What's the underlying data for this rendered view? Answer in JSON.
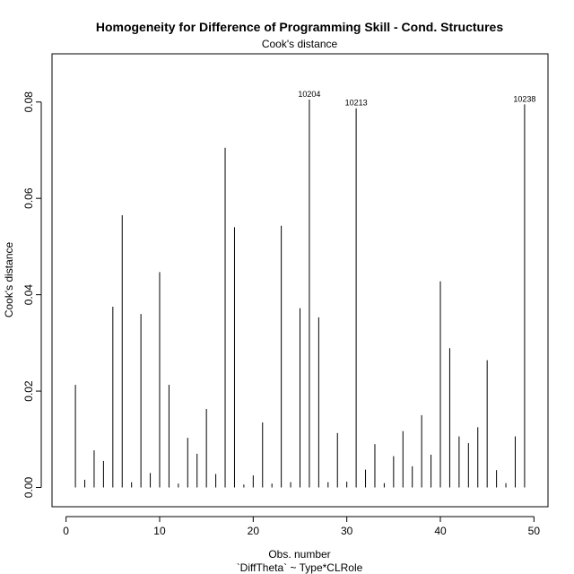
{
  "chart_data": {
    "type": "bar",
    "title": "Homogeneity for Difference of Programming Skill - Cond. Structures",
    "subtitle": "Cook's distance",
    "xlabel": "Obs. number",
    "xlabel2": "`DiffTheta` ~ Type*CLRole",
    "ylabel": "Cook's distance",
    "xlim": [
      -1.5,
      51.5
    ],
    "ylim": [
      -0.004,
      0.09
    ],
    "xticks": [
      0,
      10,
      20,
      30,
      40,
      50
    ],
    "yticks": [
      0.0,
      0.02,
      0.04,
      0.06,
      0.08
    ],
    "xtick_labels": [
      "0",
      "10",
      "20",
      "30",
      "40",
      "50"
    ],
    "ytick_labels": [
      "0.00",
      "0.02",
      "0.04",
      "0.06",
      "0.08"
    ],
    "grid": false,
    "x": [
      1,
      2,
      3,
      4,
      5,
      6,
      7,
      8,
      9,
      10,
      11,
      12,
      13,
      14,
      15,
      16,
      17,
      18,
      19,
      20,
      21,
      22,
      23,
      24,
      25,
      26,
      27,
      28,
      29,
      30,
      31,
      32,
      33,
      34,
      35,
      36,
      37,
      38,
      39,
      40,
      41,
      42,
      43,
      44,
      45,
      46,
      47,
      48,
      49
    ],
    "values": [
      0.0213,
      0.0016,
      0.0077,
      0.0055,
      0.0375,
      0.0565,
      0.0011,
      0.036,
      0.003,
      0.0447,
      0.0213,
      0.0008,
      0.0103,
      0.007,
      0.0163,
      0.0028,
      0.0705,
      0.054,
      0.0006,
      0.0025,
      0.0135,
      0.0008,
      0.0543,
      0.0011,
      0.0372,
      0.0805,
      0.0353,
      0.0011,
      0.0113,
      0.0012,
      0.0787,
      0.0037,
      0.009,
      0.0009,
      0.0065,
      0.0117,
      0.0044,
      0.015,
      0.0068,
      0.0428,
      0.0289,
      0.0106,
      0.0092,
      0.0125,
      0.0264,
      0.0036,
      0.0009,
      0.0106,
      0.0795
    ],
    "point_labels": [
      {
        "x": 26,
        "text": "10204"
      },
      {
        "x": 31,
        "text": "10213"
      },
      {
        "x": 49,
        "text": "10238"
      }
    ]
  }
}
